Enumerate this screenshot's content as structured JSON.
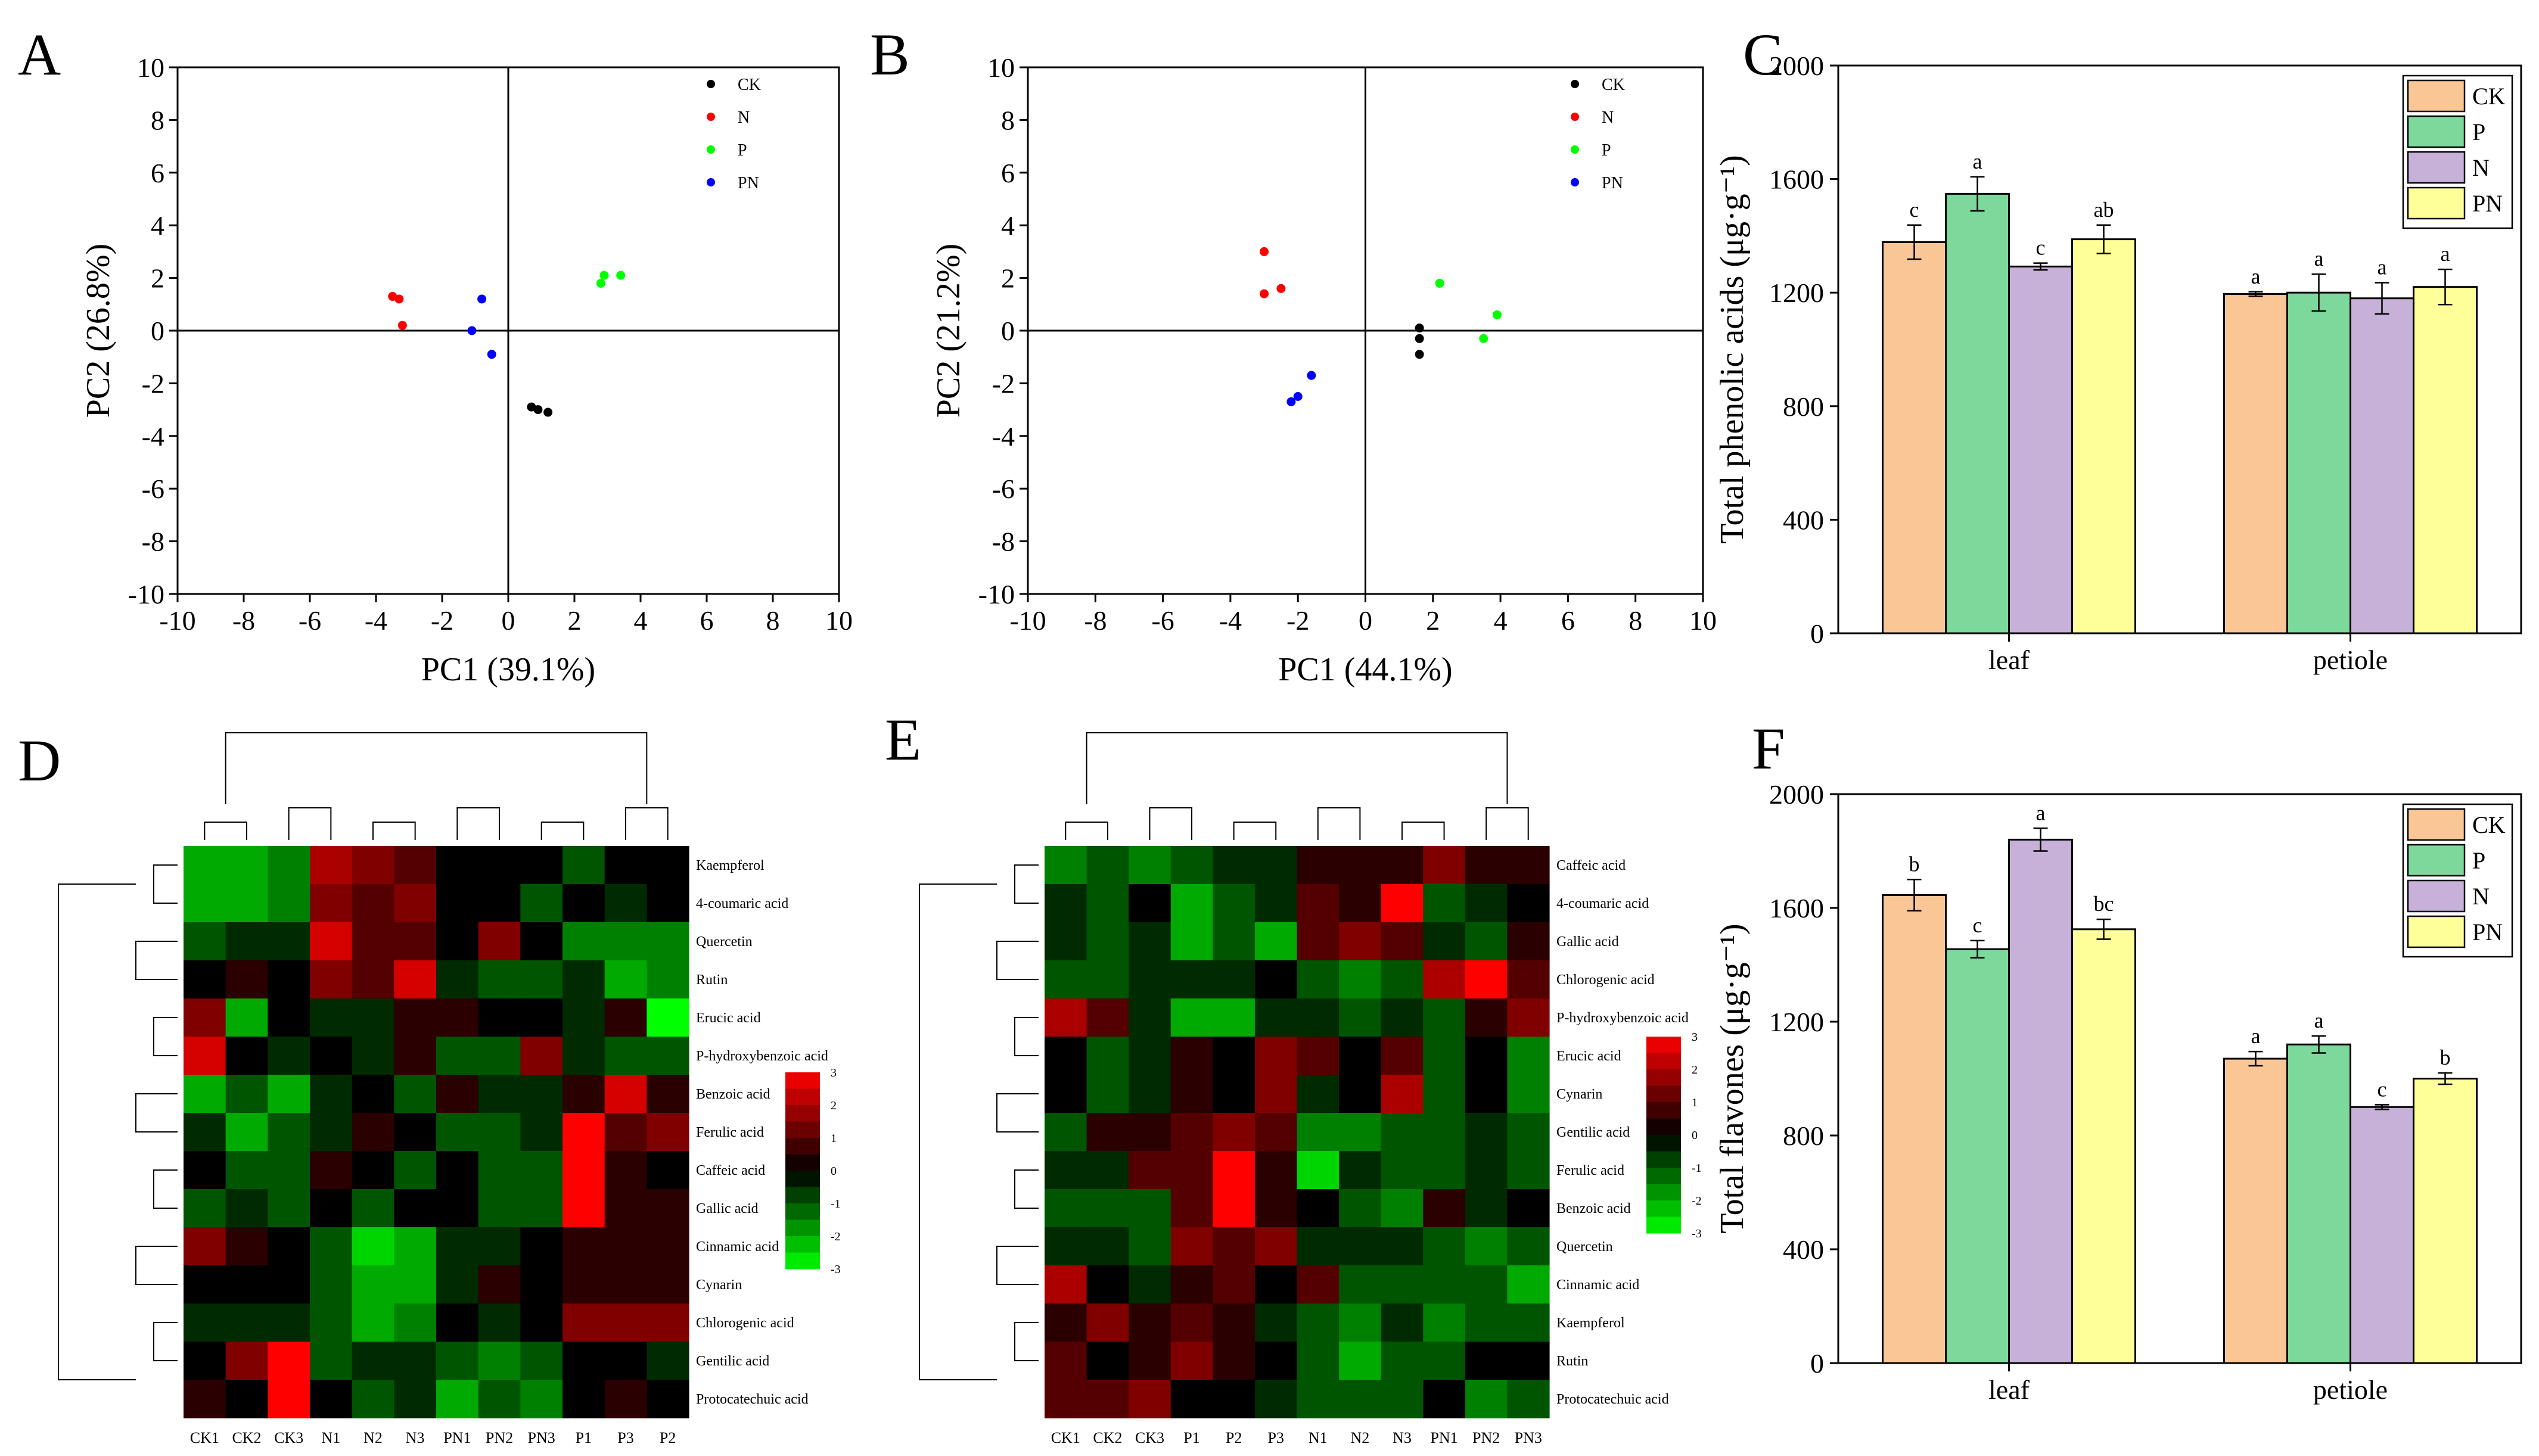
{
  "panel_letters": [
    "A",
    "B",
    "C",
    "D",
    "E",
    "F"
  ],
  "chart_data": [
    {
      "panel": "A",
      "type": "scatter",
      "xlabel": "PC1 (39.1%)",
      "ylabel": "PC2 (26.8%)",
      "xlim": [
        -10,
        10
      ],
      "ylim": [
        -10,
        10
      ],
      "ticks": [
        -10,
        -8,
        -6,
        -4,
        -2,
        0,
        2,
        4,
        6,
        8,
        10
      ],
      "legend_position": "top-right",
      "series": [
        {
          "name": "CK",
          "color": "#000000",
          "points": [
            [
              0.7,
              -2.9
            ],
            [
              0.9,
              -3.0
            ],
            [
              1.2,
              -3.1
            ]
          ]
        },
        {
          "name": "N",
          "color": "#ff0000",
          "points": [
            [
              -3.5,
              1.3
            ],
            [
              -3.3,
              1.2
            ],
            [
              -3.2,
              0.2
            ]
          ]
        },
        {
          "name": "P",
          "color": "#00ff00",
          "points": [
            [
              2.8,
              1.8
            ],
            [
              2.9,
              2.1
            ],
            [
              3.4,
              2.1
            ]
          ]
        },
        {
          "name": "PN",
          "color": "#0000ff",
          "points": [
            [
              -0.8,
              1.2
            ],
            [
              -1.1,
              0.0
            ],
            [
              -0.5,
              -0.9
            ]
          ]
        }
      ]
    },
    {
      "panel": "B",
      "type": "scatter",
      "xlabel": "PC1 (44.1%)",
      "ylabel": "PC2 (21.2%)",
      "xlim": [
        -10,
        10
      ],
      "ylim": [
        -10,
        10
      ],
      "ticks": [
        -10,
        -8,
        -6,
        -4,
        -2,
        0,
        2,
        4,
        6,
        8,
        10
      ],
      "legend_position": "top-right",
      "series": [
        {
          "name": "CK",
          "color": "#000000",
          "points": [
            [
              1.6,
              0.1
            ],
            [
              1.6,
              -0.3
            ],
            [
              1.6,
              -0.9
            ]
          ]
        },
        {
          "name": "N",
          "color": "#ff0000",
          "points": [
            [
              -3.0,
              3.0
            ],
            [
              -3.0,
              1.4
            ],
            [
              -2.5,
              1.6
            ]
          ]
        },
        {
          "name": "P",
          "color": "#00ff00",
          "points": [
            [
              2.2,
              1.8
            ],
            [
              3.9,
              0.6
            ],
            [
              3.5,
              -0.3
            ]
          ]
        },
        {
          "name": "PN",
          "color": "#0000ff",
          "points": [
            [
              -1.6,
              -1.7
            ],
            [
              -2.0,
              -2.5
            ],
            [
              -2.2,
              -2.7
            ]
          ]
        }
      ]
    },
    {
      "panel": "C",
      "type": "bar",
      "categories": [
        "leaf",
        "petiole"
      ],
      "ylabel": "Total phenolic acids (μg·g⁻¹)",
      "ylim": [
        0,
        2000
      ],
      "yticks": [
        0,
        400,
        800,
        1200,
        1600,
        2000
      ],
      "legend_position": "top-right",
      "series": [
        {
          "name": "CK",
          "color": "#fbc696",
          "values": [
            1378,
            1195
          ],
          "errors": [
            60,
            8
          ],
          "letters": [
            "c",
            "a"
          ]
        },
        {
          "name": "P",
          "color": "#7dd89c",
          "values": [
            1548,
            1200
          ],
          "errors": [
            60,
            65
          ],
          "letters": [
            "a",
            "a"
          ]
        },
        {
          "name": "N",
          "color": "#c7b1d8",
          "values": [
            1292,
            1180
          ],
          "errors": [
            12,
            55
          ],
          "letters": [
            "c",
            "a"
          ]
        },
        {
          "name": "PN",
          "color": "#ffff99",
          "values": [
            1388,
            1220
          ],
          "errors": [
            50,
            62
          ],
          "letters": [
            "ab",
            "a"
          ]
        }
      ]
    },
    {
      "panel": "F",
      "type": "bar",
      "categories": [
        "leaf",
        "petiole"
      ],
      "ylabel": "Total flavones (μg·g⁻¹)",
      "ylim": [
        0,
        2000
      ],
      "yticks": [
        0,
        400,
        800,
        1200,
        1600,
        2000
      ],
      "legend_position": "top-right",
      "series": [
        {
          "name": "CK",
          "color": "#fbc696",
          "values": [
            1645,
            1070
          ],
          "errors": [
            55,
            25
          ],
          "letters": [
            "b",
            "a"
          ]
        },
        {
          "name": "P",
          "color": "#7dd89c",
          "values": [
            1455,
            1120
          ],
          "errors": [
            30,
            30
          ],
          "letters": [
            "c",
            "a"
          ]
        },
        {
          "name": "N",
          "color": "#c7b1d8",
          "values": [
            1840,
            900
          ],
          "errors": [
            40,
            8
          ],
          "letters": [
            "a",
            "c"
          ]
        },
        {
          "name": "PN",
          "color": "#ffff99",
          "values": [
            1525,
            1000
          ],
          "errors": [
            35,
            20
          ],
          "letters": [
            "bc",
            "b"
          ]
        }
      ]
    },
    {
      "panel": "D",
      "type": "heatmap",
      "columns": [
        "CK1",
        "CK2",
        "CK3",
        "N1",
        "N2",
        "N3",
        "PN1",
        "PN2",
        "PN3",
        "P1",
        "P3",
        "P2"
      ],
      "rows": [
        "Kaempferol",
        "4-coumaric acid",
        "Quercetin",
        "Rutin",
        "Erucic acid",
        "P-hydroxybenzoic acid",
        "Benzoic acid",
        "Ferulic acid",
        "Caffeic acid",
        "Gallic acid",
        "Cinnamic acid",
        "Cynarin",
        "Chlorogenic acid",
        "Gentilic acid",
        "Protocatechuic acid"
      ],
      "colorscale_ticks": [
        3,
        2,
        1,
        0,
        -1,
        -2,
        -3
      ],
      "colorscale_range": [
        -3,
        3
      ],
      "values": [
        [
          -2,
          -2,
          -1.5,
          2,
          1.5,
          1,
          0,
          0,
          0,
          -1,
          0,
          0
        ],
        [
          -2,
          -2,
          -1.5,
          1.5,
          1,
          1.5,
          0,
          0,
          -1,
          0,
          -0.5,
          0
        ],
        [
          -1,
          -0.5,
          -0.5,
          2.5,
          1,
          1,
          0,
          1.5,
          0,
          -1.5,
          -1.5,
          -1.5
        ],
        [
          0,
          0.5,
          0,
          1.5,
          1,
          2.5,
          -0.5,
          -1,
          -1,
          -0.5,
          -2,
          -1.5
        ],
        [
          1.5,
          -2,
          0,
          -0.5,
          -0.5,
          0.5,
          0.5,
          0,
          0,
          -0.5,
          0.5,
          -3
        ],
        [
          2.5,
          0,
          -0.5,
          0,
          -0.5,
          0.5,
          -1,
          -1,
          1.5,
          -0.5,
          -1,
          -1
        ],
        [
          -2,
          -1,
          -2,
          -0.5,
          0,
          -1,
          0.5,
          -0.5,
          -0.5,
          0.5,
          2.5,
          0.5
        ],
        [
          -0.5,
          -2,
          -1,
          -0.5,
          0.5,
          0,
          -1,
          -1,
          -0.5,
          3,
          1,
          1.5
        ],
        [
          0,
          -1,
          -1,
          0.5,
          0,
          -1,
          0,
          -1,
          -1,
          3,
          0.5,
          0
        ],
        [
          -1,
          -0.5,
          -1,
          0,
          -1,
          0,
          0,
          -1,
          -1,
          3,
          0.5,
          0.5
        ],
        [
          1.5,
          0.5,
          0,
          -1,
          -2.5,
          -2,
          -0.5,
          -0.5,
          0,
          0.5,
          0.5,
          0.5
        ],
        [
          0,
          0,
          0,
          -1,
          -2,
          -2,
          -0.5,
          0.5,
          0,
          0.5,
          0.5,
          0.5
        ],
        [
          -0.5,
          -0.5,
          -0.5,
          -1,
          -2,
          -1.5,
          0,
          -0.5,
          0,
          1.5,
          1.5,
          1.5
        ],
        [
          0,
          1.5,
          3,
          -1,
          -0.5,
          -0.5,
          -1,
          -1.5,
          -1,
          0,
          0,
          -0.5
        ],
        [
          0.5,
          0,
          3,
          0,
          -1,
          -0.5,
          -2,
          -1,
          -1.5,
          0,
          0.5,
          0
        ]
      ]
    },
    {
      "panel": "E",
      "type": "heatmap",
      "columns": [
        "CK1",
        "CK2",
        "CK3",
        "P1",
        "P2",
        "P3",
        "N1",
        "N2",
        "N3",
        "PN1",
        "PN2",
        "PN3"
      ],
      "rows": [
        "Caffeic acid",
        "4-coumaric acid",
        "Gallic acid",
        "Chlorogenic acid",
        "P-hydroxybenzoic acid",
        "Erucic acid",
        "Cynarin",
        "Gentilic acid",
        "Ferulic acid",
        "Benzoic acid",
        "Quercetin",
        "Cinnamic acid",
        "Kaempferol",
        "Rutin",
        "Protocatechuic acid"
      ],
      "colorscale_ticks": [
        3,
        2,
        1,
        0,
        -1,
        -2,
        -3
      ],
      "colorscale_range": [
        -3,
        3
      ],
      "values": [
        [
          -1.5,
          -1,
          -1.5,
          -1,
          -0.5,
          -0.5,
          0.5,
          0.5,
          0.5,
          1.5,
          0.5,
          0.5
        ],
        [
          -0.5,
          -1,
          0,
          -2,
          -1,
          -0.5,
          1,
          0.5,
          3,
          -1,
          -0.5,
          0
        ],
        [
          -0.5,
          -1,
          -0.5,
          -2,
          -1,
          -2,
          1,
          1.5,
          1,
          -0.5,
          -1,
          0.5
        ],
        [
          -1,
          -1,
          -0.5,
          -0.5,
          -0.5,
          0,
          -1,
          -1.5,
          -1,
          2,
          3,
          1
        ],
        [
          2,
          1,
          -0.5,
          -2,
          -2,
          -0.5,
          -0.5,
          -1,
          -0.5,
          -1,
          0.5,
          1.5
        ],
        [
          0,
          -1,
          -0.5,
          0.5,
          0,
          1.5,
          1,
          0,
          1,
          -1,
          0,
          -1.5
        ],
        [
          0,
          -1,
          -0.5,
          0.5,
          0,
          1.5,
          -0.5,
          0,
          2,
          -1,
          0,
          -1.5
        ],
        [
          -1,
          0.5,
          0.5,
          1,
          1.5,
          1,
          -1.5,
          -1.5,
          -1,
          -1,
          -0.5,
          -1
        ],
        [
          -0.5,
          -0.5,
          1,
          1,
          3,
          0.5,
          -2.5,
          -0.5,
          -1,
          -1,
          -0.5,
          -1
        ],
        [
          -1,
          -1,
          -1,
          1,
          3,
          0.5,
          0,
          -1,
          -1.5,
          0.5,
          -0.5,
          0
        ],
        [
          -0.5,
          -0.5,
          -1,
          1.5,
          1,
          1.5,
          -0.5,
          -0.5,
          -0.5,
          -1,
          -1.5,
          -1
        ],
        [
          2,
          0,
          -0.5,
          0.5,
          1,
          0,
          1,
          -1,
          -1,
          -1,
          -1,
          -2
        ],
        [
          0.5,
          1.5,
          0.5,
          1,
          0.5,
          -0.5,
          -1,
          -1.5,
          -0.5,
          -1.5,
          -1,
          -1
        ],
        [
          1,
          0,
          0.5,
          1.5,
          0.5,
          0,
          -1,
          -2,
          -1,
          -1,
          0,
          0
        ],
        [
          1,
          1,
          1.5,
          0,
          0,
          -0.5,
          -1,
          -1,
          -1,
          0,
          -1.5,
          -1
        ]
      ]
    }
  ]
}
